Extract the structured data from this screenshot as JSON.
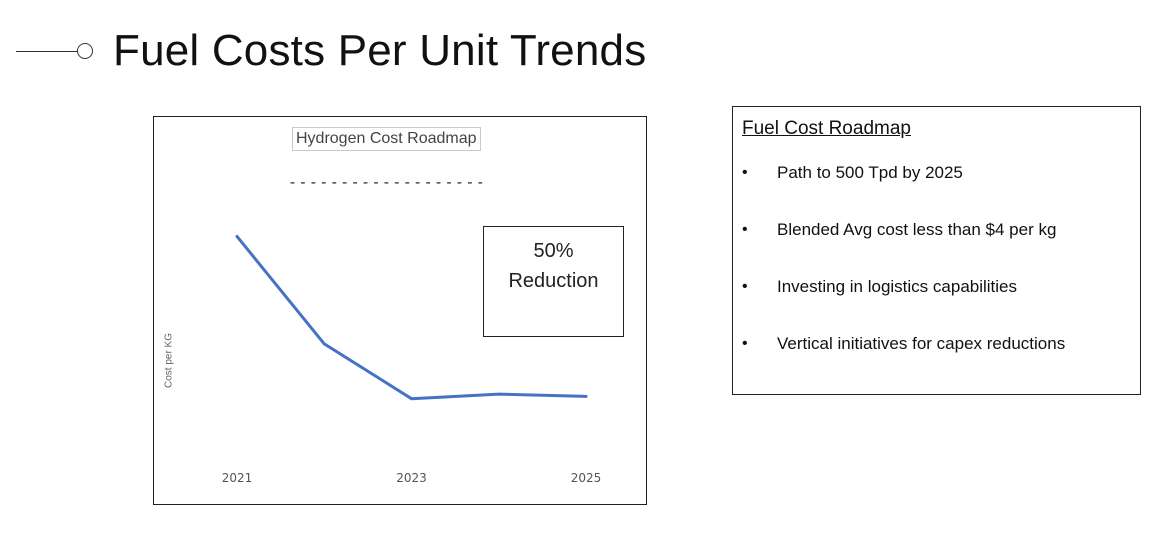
{
  "slide": {
    "title": "Fuel Costs Per Unit Trends"
  },
  "chart": {
    "title": "Hydrogen Cost Roadmap",
    "dashes": "-------------------",
    "y_label": "Cost per KG",
    "callout_line1": "50%",
    "callout_line2": "Reduction",
    "line_color": "#4472c4"
  },
  "chart_data": {
    "type": "line",
    "title": "Hydrogen Cost Roadmap",
    "xlabel": "",
    "ylabel": "Cost per KG",
    "x_tick_labels": [
      "2021",
      "2023",
      "2025"
    ],
    "x": [
      2021,
      2022,
      2023,
      2024,
      2025
    ],
    "series": [
      {
        "values": [
          100,
          53,
          29,
          31,
          30
        ]
      }
    ],
    "ylim": [
      0,
      105
    ],
    "grid": false,
    "legend": "none",
    "annotations": [
      "50% Reduction"
    ]
  },
  "roadmap": {
    "heading": "Fuel Cost Roadmap",
    "bullet_symbol": "•",
    "items": [
      "Path to 500 Tpd by 2025",
      "Blended Avg cost less than $4 per kg",
      "Investing in logistics capabilities",
      "Vertical initiatives for capex reductions"
    ]
  }
}
